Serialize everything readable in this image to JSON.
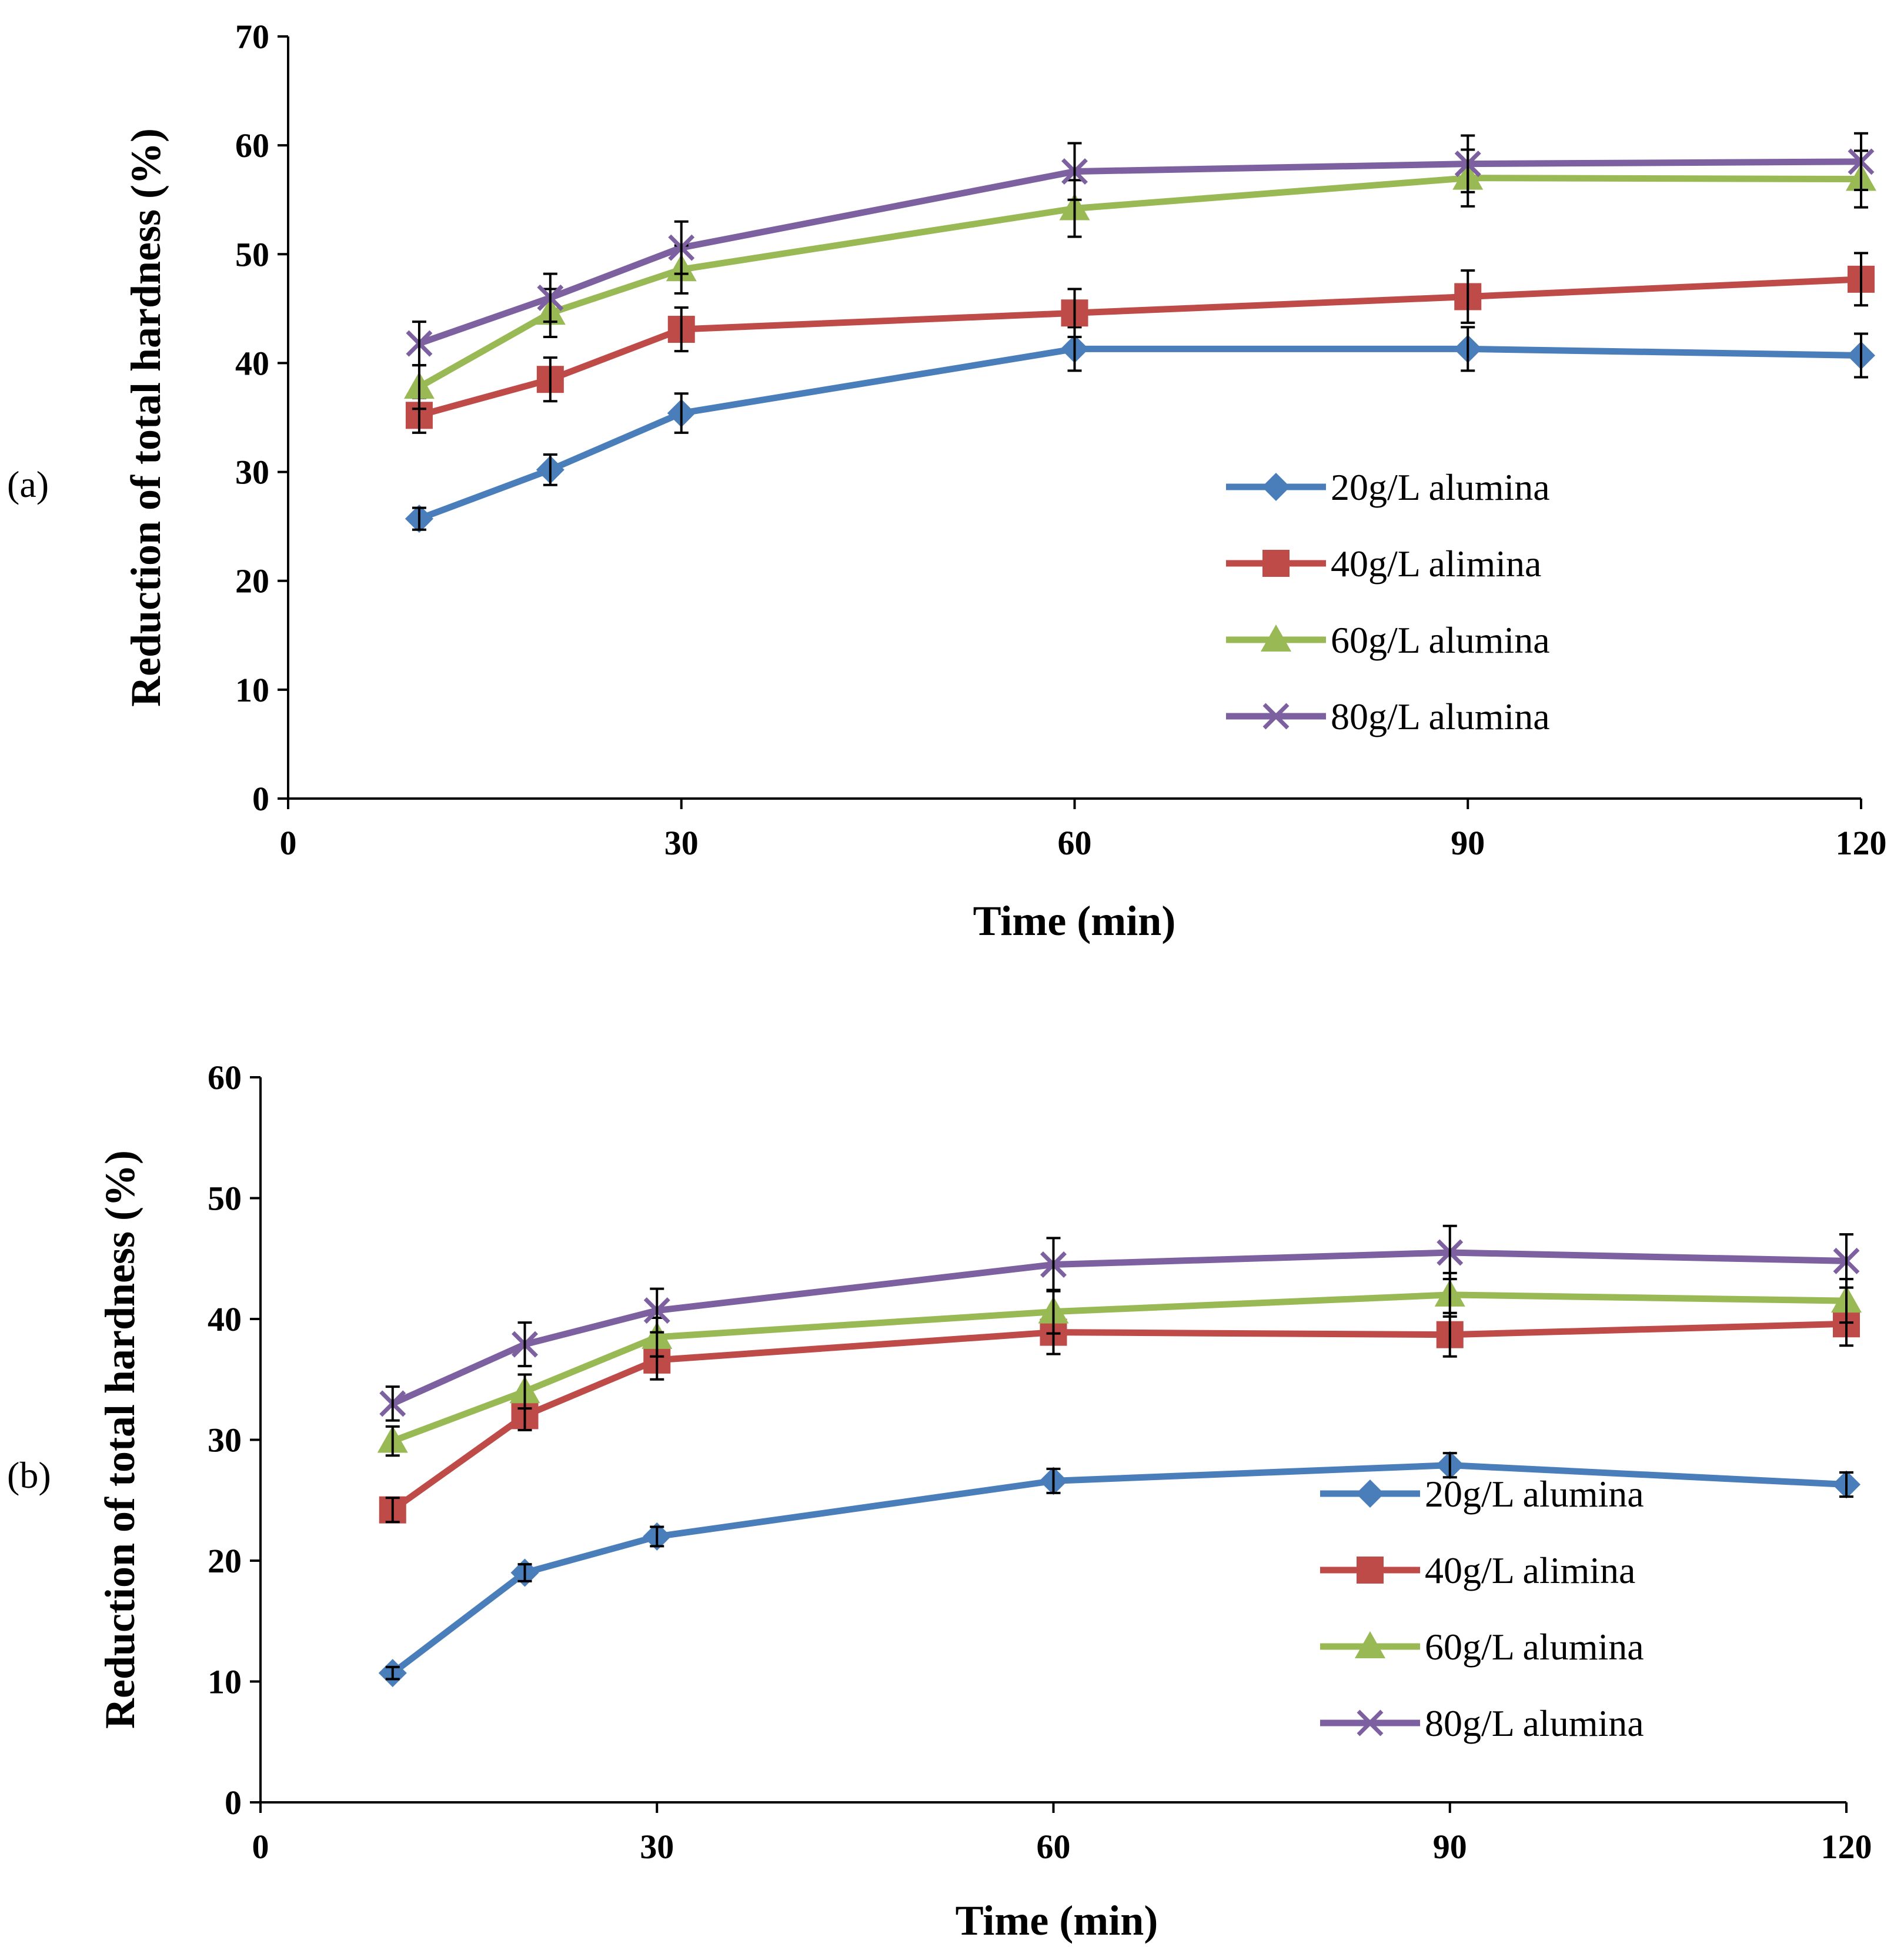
{
  "chart_data": [
    {
      "type": "line",
      "panel_label": "(a)",
      "xlabel": "Time (min)",
      "ylabel": "Reduction of total hardness (%)",
      "xlim": [
        0,
        120
      ],
      "ylim": [
        0,
        70
      ],
      "xticks": [
        0,
        30,
        60,
        90,
        120
      ],
      "xtick_labels": [
        "0",
        "30",
        "60",
        "90",
        "120"
      ],
      "yticks": [
        0,
        10,
        20,
        30,
        40,
        50,
        60,
        70
      ],
      "ytick_labels": [
        "0",
        "10",
        "20",
        "30",
        "40",
        "50",
        "60",
        "70"
      ],
      "x": [
        10,
        20,
        30,
        60,
        90,
        120
      ],
      "legend_position": "right-center",
      "series": [
        {
          "name": "20g/L alumina",
          "color": "#4a7ebb",
          "marker": "diamond",
          "values": [
            25.7,
            30.2,
            35.4,
            41.3,
            41.3,
            40.7
          ],
          "errors": [
            1.0,
            1.4,
            1.8,
            2.0,
            2.0,
            2.0
          ]
        },
        {
          "name": "40g/L alimina",
          "color": "#be4b48",
          "marker": "square",
          "values": [
            35.2,
            38.5,
            43.1,
            44.6,
            46.1,
            47.7
          ],
          "errors": [
            1.6,
            2.0,
            2.0,
            2.2,
            2.4,
            2.4
          ]
        },
        {
          "name": "60g/L alumina",
          "color": "#98b954",
          "marker": "triangle",
          "values": [
            37.8,
            44.6,
            48.6,
            54.2,
            57.0,
            56.9
          ],
          "errors": [
            2.0,
            2.2,
            2.2,
            2.6,
            2.6,
            2.6
          ]
        },
        {
          "name": "80g/L alumina",
          "color": "#7d60a0",
          "marker": "cross",
          "values": [
            41.8,
            46.0,
            50.6,
            57.6,
            58.3,
            58.5
          ],
          "errors": [
            2.0,
            2.2,
            2.4,
            2.6,
            2.6,
            2.6
          ]
        }
      ]
    },
    {
      "type": "line",
      "panel_label": "(b)",
      "xlabel": "Time (min)",
      "ylabel": "Reduction of total hardness (%)",
      "xlim": [
        0,
        120
      ],
      "ylim": [
        0,
        60
      ],
      "xticks": [
        0,
        30,
        60,
        90,
        120
      ],
      "xtick_labels": [
        "0",
        "30",
        "60",
        "90",
        "120"
      ],
      "yticks": [
        0,
        10,
        20,
        30,
        40,
        50,
        60
      ],
      "ytick_labels": [
        "0",
        "10",
        "20",
        "30",
        "40",
        "50",
        "60"
      ],
      "x": [
        10,
        20,
        30,
        60,
        90,
        120
      ],
      "legend_position": "right-center",
      "series": [
        {
          "name": "20g/L alumina",
          "color": "#4a7ebb",
          "marker": "diamond",
          "values": [
            10.7,
            19.0,
            22.0,
            26.6,
            27.9,
            26.3
          ],
          "errors": [
            0.5,
            0.7,
            0.8,
            1.0,
            1.0,
            1.0
          ]
        },
        {
          "name": "40g/L alimina",
          "color": "#be4b48",
          "marker": "square",
          "values": [
            24.2,
            32.0,
            36.6,
            38.9,
            38.7,
            39.6
          ],
          "errors": [
            1.0,
            1.2,
            1.6,
            1.8,
            1.8,
            1.8
          ]
        },
        {
          "name": "60g/L alumina",
          "color": "#98b954",
          "marker": "triangle",
          "values": [
            29.9,
            34.0,
            38.5,
            40.6,
            42.0,
            41.5
          ],
          "errors": [
            1.2,
            1.4,
            1.6,
            1.8,
            1.8,
            1.8
          ]
        },
        {
          "name": "80g/L alumina",
          "color": "#7d60a0",
          "marker": "cross",
          "values": [
            33.0,
            37.9,
            40.7,
            44.5,
            45.5,
            44.8
          ],
          "errors": [
            1.4,
            1.8,
            1.8,
            2.2,
            2.2,
            2.2
          ]
        }
      ]
    }
  ]
}
